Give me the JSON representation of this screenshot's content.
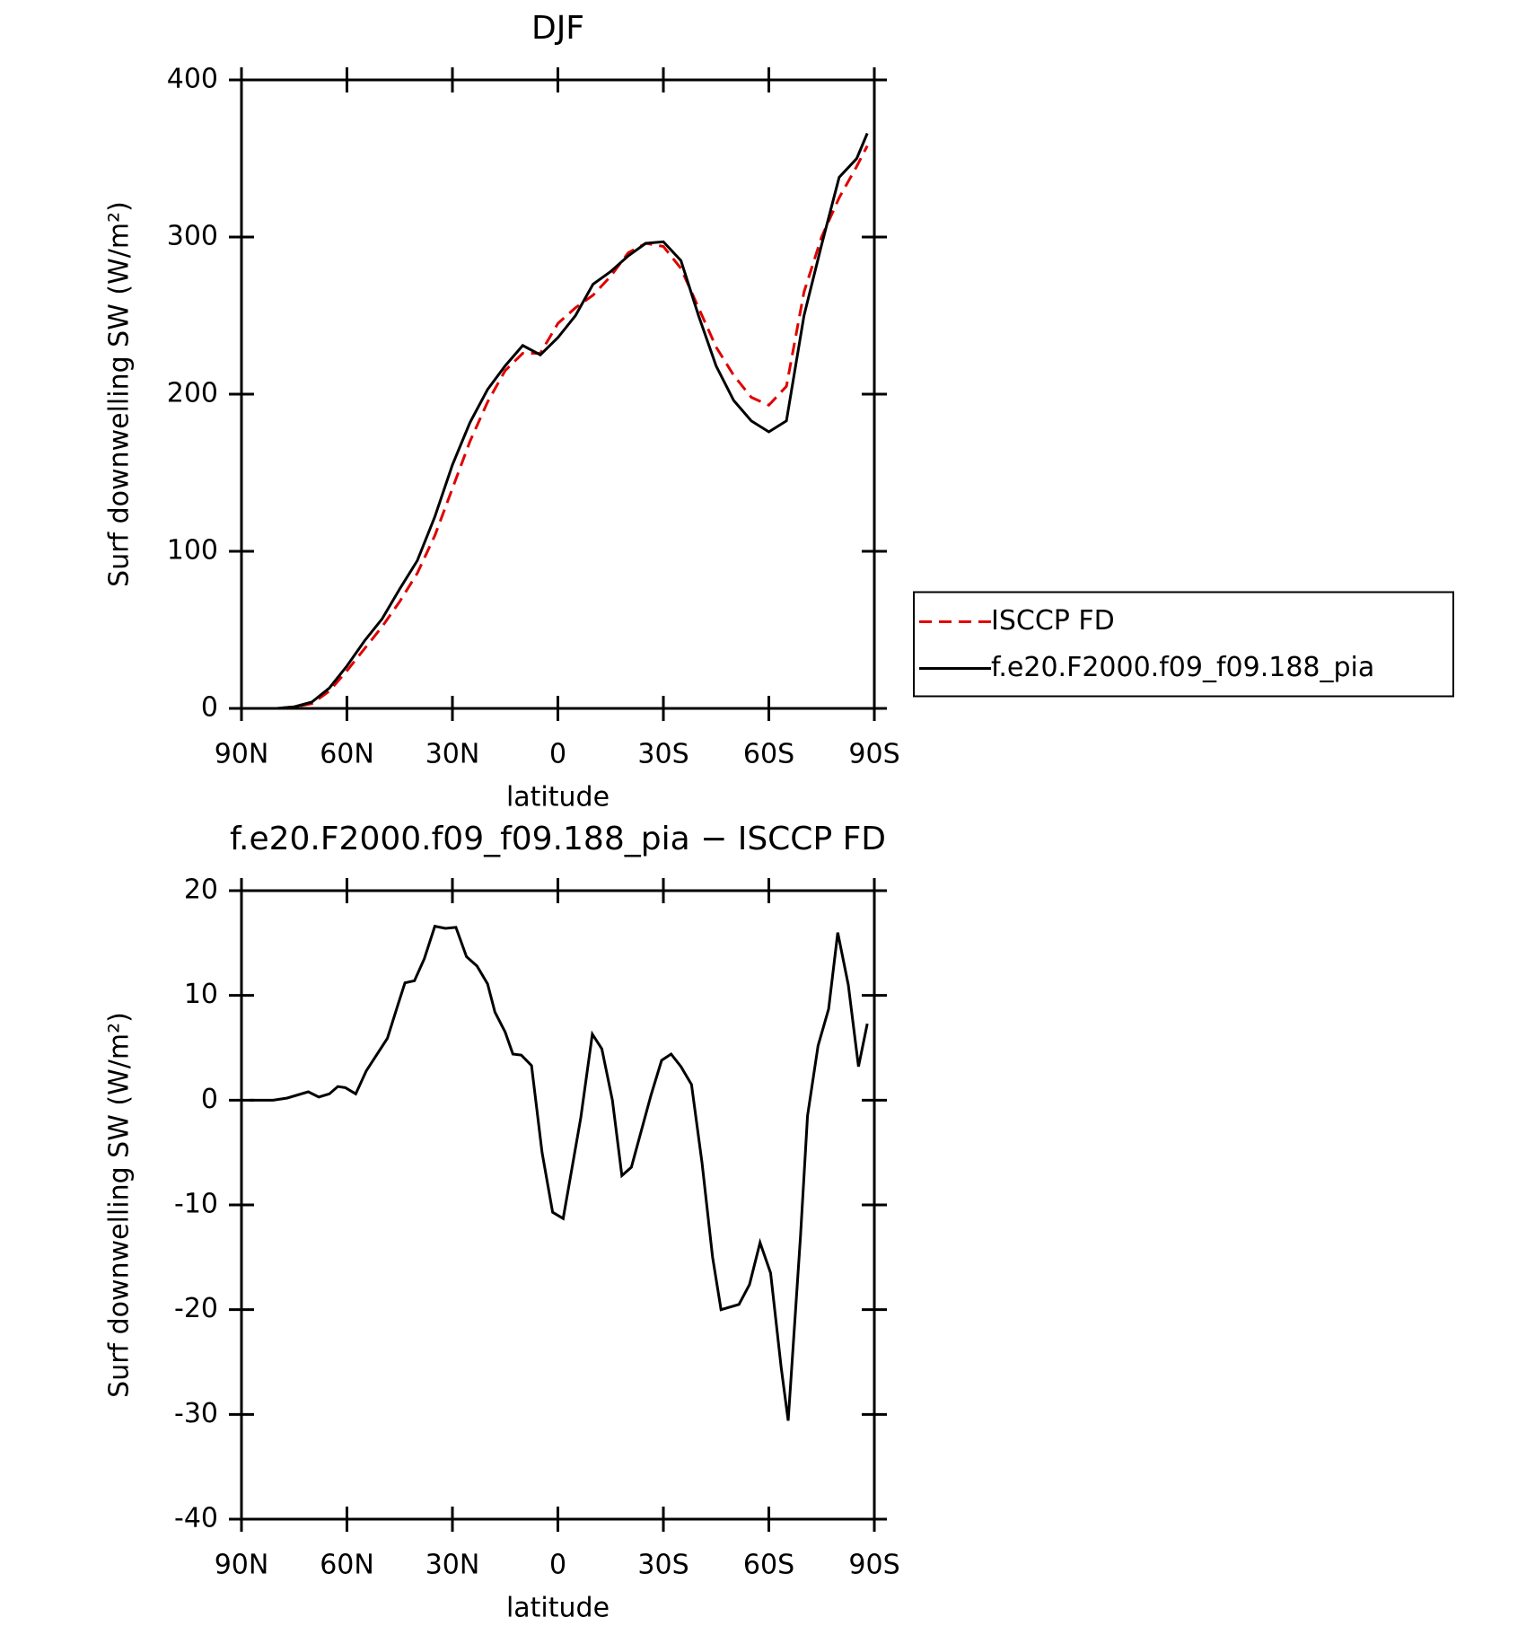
{
  "chart_data": [
    {
      "type": "line",
      "title": "DJF",
      "xlabel": "latitude",
      "ylabel": "Surf downwelling SW (W/m²)",
      "x": [
        90,
        85,
        80,
        75,
        70,
        65,
        60,
        55,
        50,
        45,
        40,
        35,
        30,
        25,
        20,
        15,
        10,
        5,
        0,
        -5,
        -10,
        -15,
        -20,
        -25,
        -30,
        -35,
        -40,
        -45,
        -50,
        -55,
        -60,
        -65,
        -70,
        -75,
        -80,
        -85,
        -88
      ],
      "series": [
        {
          "name": "ISCCP FD",
          "color": "#e00000",
          "dashed": true,
          "values": [
            0,
            0,
            0,
            1,
            3,
            11,
            24,
            38,
            52,
            68,
            86,
            110,
            140,
            170,
            195,
            215,
            226,
            226,
            245,
            255,
            263,
            275,
            290,
            296,
            294,
            280,
            255,
            230,
            212,
            198,
            193,
            205,
            265,
            300,
            325,
            345,
            358
          ]
        },
        {
          "name": "f.e20.F2000.f09_f09.188_pia",
          "color": "#000000",
          "dashed": false,
          "values": [
            0,
            0,
            0,
            1,
            4,
            13,
            27,
            43,
            57,
            76,
            94,
            122,
            155,
            182,
            203,
            218,
            231,
            225,
            236,
            250,
            270,
            278,
            288,
            296,
            297,
            285,
            250,
            218,
            196,
            183,
            176,
            183,
            250,
            295,
            338,
            350,
            366
          ]
        }
      ],
      "xlim": [
        90,
        -90
      ],
      "xticks": [
        {
          "value": 90,
          "label": "90N"
        },
        {
          "value": 60,
          "label": "60N"
        },
        {
          "value": 30,
          "label": "30N"
        },
        0,
        {
          "value": -30,
          "label": "30S"
        },
        {
          "value": -60,
          "label": "60S"
        },
        {
          "value": -90,
          "label": "90S"
        }
      ],
      "ylim": [
        0,
        400
      ],
      "yticks": [
        0,
        100,
        200,
        300,
        400
      ],
      "legend": "right"
    },
    {
      "type": "line",
      "title": "f.e20.F2000.f09_f09.188_pia − ISCCP FD",
      "xlabel": "latitude",
      "ylabel": "Surf downwelling SW (W/m²)",
      "x": [
        87.6,
        81,
        77,
        71,
        68,
        65,
        62.6,
        60.5,
        57.5,
        54.5,
        48.5,
        45.6,
        43.5,
        40.8,
        38,
        35,
        32,
        29,
        26,
        23,
        20,
        17.9,
        15,
        12.8,
        10.4,
        7.5,
        4.5,
        1.5,
        -1.5,
        -6.5,
        -9.8,
        -12.5,
        -15.5,
        -18.2,
        -20.9,
        -26.5,
        -29.5,
        -32.2,
        -35,
        -38,
        -41,
        -44,
        -46.4,
        -51.5,
        -54.5,
        -57.5,
        -60.5,
        -63.5,
        -65.5,
        -69,
        -71,
        -74,
        -77,
        -79.6,
        -82.6,
        -85.5,
        -88
      ],
      "values": [
        0,
        0,
        0.2,
        0.8,
        0.3,
        0.6,
        1.3,
        1.2,
        0.6,
        2.8,
        5.9,
        9,
        11.2,
        11.4,
        13.5,
        16.6,
        16.4,
        16.5,
        13.7,
        12.8,
        11.1,
        8.4,
        6.5,
        4.4,
        4.3,
        3.3,
        -5,
        -10.7,
        -11.3,
        -1.7,
        6.3,
        4.9,
        0,
        -7.2,
        -6.4,
        0.5,
        3.8,
        4.4,
        3.2,
        1.5,
        -6,
        -15,
        -20,
        -19.5,
        -17.6,
        -13.6,
        -16.5,
        -25.5,
        -30.6,
        -13,
        -1.5,
        5.2,
        8.7,
        16,
        11,
        3.2,
        7.3
      ],
      "color": "#000000",
      "xlim": [
        90,
        -90
      ],
      "xticks": [
        {
          "value": 90,
          "label": "90N"
        },
        {
          "value": 60,
          "label": "60N"
        },
        {
          "value": 30,
          "label": "30N"
        },
        0,
        {
          "value": -30,
          "label": "30S"
        },
        {
          "value": -60,
          "label": "60S"
        },
        {
          "value": -90,
          "label": "90S"
        }
      ],
      "ylim": [
        -40,
        20
      ],
      "yticks": [
        -40,
        -30,
        -20,
        -10,
        0,
        10,
        20
      ]
    }
  ]
}
